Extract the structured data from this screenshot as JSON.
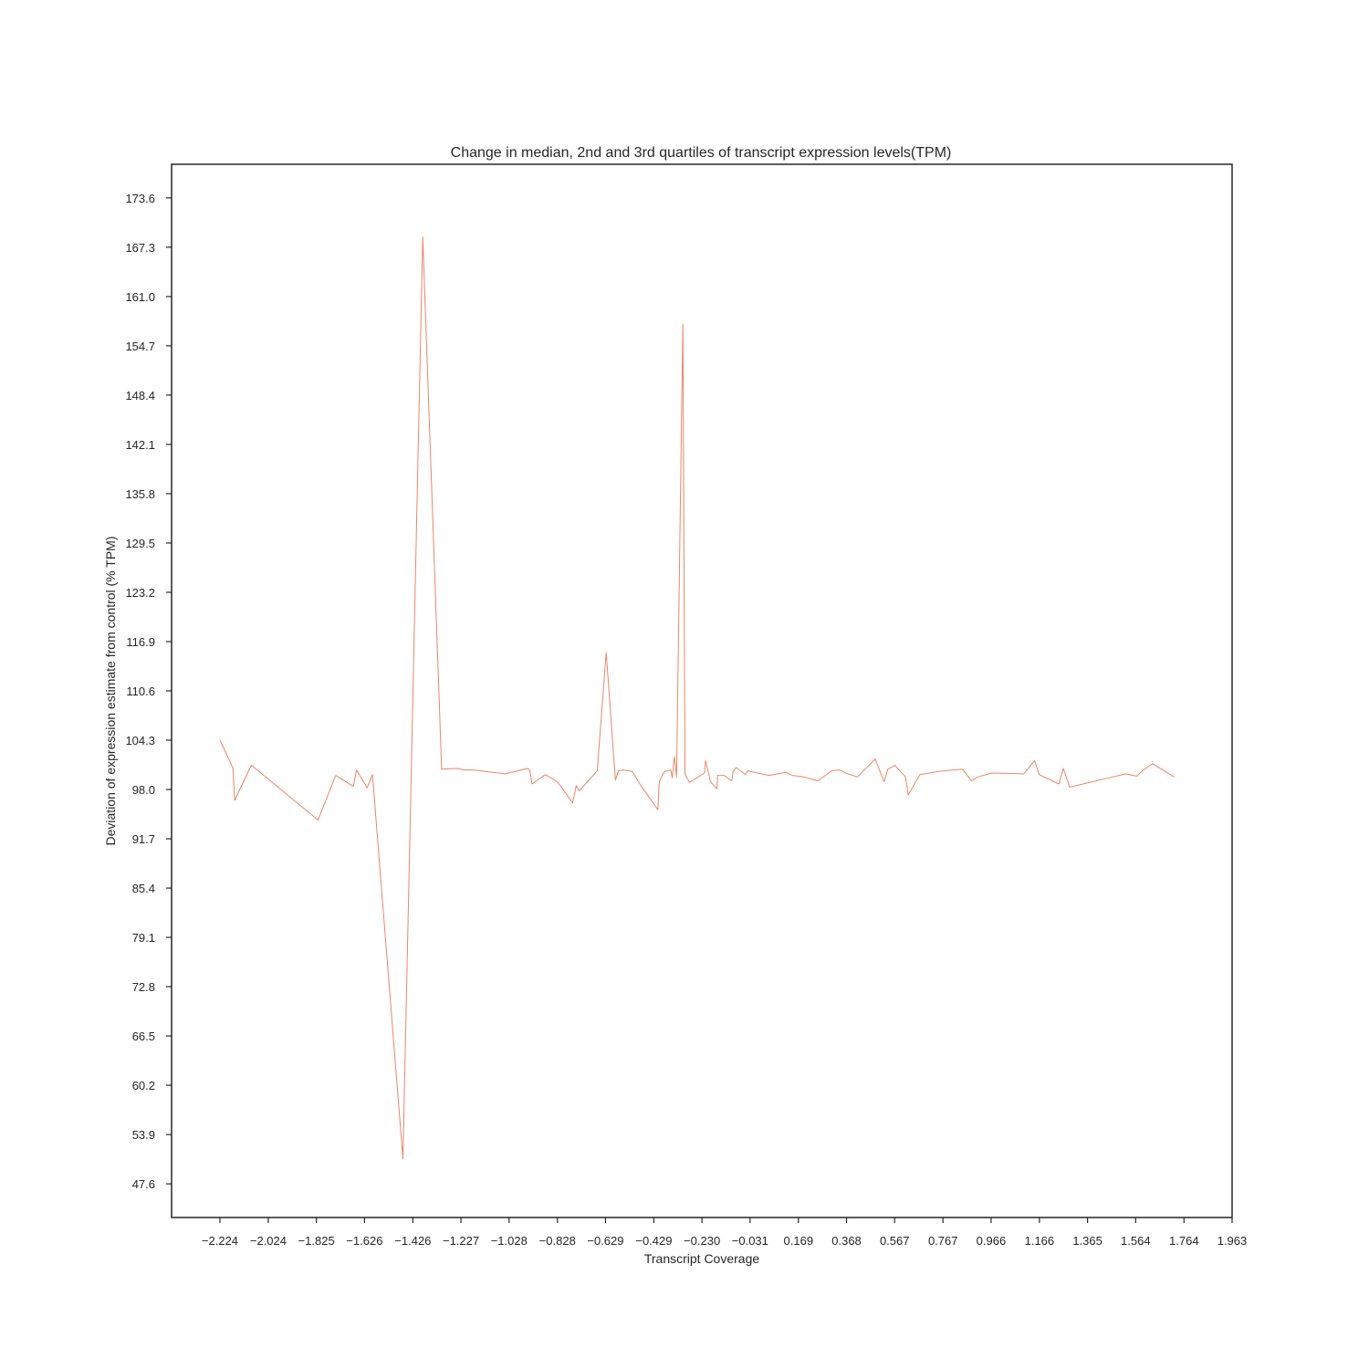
{
  "chart_data": {
    "type": "line",
    "title": "Change in median, 2nd and 3rd quartiles of transcript expression levels(TPM)",
    "xlabel": "Transcript Coverage",
    "ylabel": "Deviation of expression estimate from control (% TPM)",
    "xlim": [
      -2.424,
      1.963
    ],
    "ylim": [
      43.3,
      177.9
    ],
    "x_ticks": [
      "−2.224",
      "−2.024",
      "−1.825",
      "−1.626",
      "−1.426",
      "−1.227",
      "−1.028",
      "−0.828",
      "−0.629",
      "−0.429",
      "−0.230",
      "−0.031",
      "0.169",
      "0.368",
      "0.567",
      "0.767",
      "0.966",
      "1.166",
      "1.365",
      "1.564",
      "1.764",
      "1.963"
    ],
    "y_ticks": [
      "47.6",
      "53.9",
      "60.2",
      "66.5",
      "72.8",
      "79.1",
      "85.4",
      "91.7",
      "98.0",
      "104.3",
      "110.6",
      "116.9",
      "123.2",
      "129.5",
      "135.8",
      "142.1",
      "148.4",
      "154.7",
      "161.0",
      "167.3",
      "173.6"
    ],
    "grid": false,
    "legend": "none",
    "color": "#e8866a",
    "series": [
      {
        "x": [
          -2.224,
          -2.17,
          -2.163,
          -2.094,
          -1.818,
          -1.745,
          -1.672,
          -1.659,
          -1.615,
          -1.593,
          -1.467,
          -1.385,
          -1.307,
          -1.242,
          -1.216,
          -1.179,
          -1.044,
          -0.949,
          -0.941,
          -0.933,
          -0.878,
          -0.828,
          -0.765,
          -0.75,
          -0.738,
          -0.663,
          -0.626,
          -0.588,
          -0.575,
          -0.557,
          -0.538,
          -0.518,
          -0.485,
          -0.412,
          -0.408,
          -0.405,
          -0.39,
          -0.383,
          -0.359,
          -0.353,
          -0.344,
          -0.335,
          -0.309,
          -0.3,
          -0.281,
          -0.22,
          -0.215,
          -0.195,
          -0.168,
          -0.165,
          -0.138,
          -0.107,
          -0.101,
          -0.089,
          -0.049,
          -0.041,
          0.0,
          0.049,
          0.118,
          0.144,
          0.193,
          0.249,
          0.307,
          0.338,
          0.365,
          0.412,
          0.486,
          0.524,
          0.539,
          0.565,
          0.568,
          0.612,
          0.623,
          0.672,
          0.749,
          0.848,
          0.885,
          0.91,
          0.968,
          1.102,
          1.146,
          1.165,
          1.246,
          1.265,
          1.291,
          1.468,
          1.523,
          1.568,
          1.592,
          1.634,
          1.723
        ],
        "y": [
          104.3,
          100.7,
          96.6,
          101.1,
          94.1,
          99.8,
          98.4,
          100.5,
          98.2,
          99.9,
          50.8,
          168.6,
          100.6,
          100.7,
          100.5,
          100.5,
          100.0,
          100.7,
          100.3,
          98.7,
          99.9,
          99.0,
          96.3,
          98.5,
          97.8,
          100.4,
          115.5,
          99.2,
          100.4,
          100.5,
          100.4,
          100.3,
          98.6,
          95.4,
          98.4,
          99.1,
          100.1,
          100.3,
          100.5,
          99.5,
          102.2,
          99.6,
          157.5,
          99.9,
          98.9,
          100.1,
          101.7,
          99.0,
          98.1,
          99.8,
          99.8,
          99.1,
          100.3,
          100.8,
          99.9,
          100.4,
          100.1,
          99.8,
          100.2,
          99.8,
          99.6,
          99.1,
          100.4,
          100.5,
          100.1,
          99.6,
          101.9,
          99.0,
          100.6,
          101.0,
          101.1,
          99.6,
          97.3,
          99.9,
          100.3,
          100.6,
          99.1,
          99.6,
          100.1,
          100.0,
          101.7,
          99.9,
          98.7,
          100.7,
          98.3,
          99.6,
          100.0,
          99.7,
          100.4,
          101.3,
          99.6
        ]
      }
    ]
  }
}
